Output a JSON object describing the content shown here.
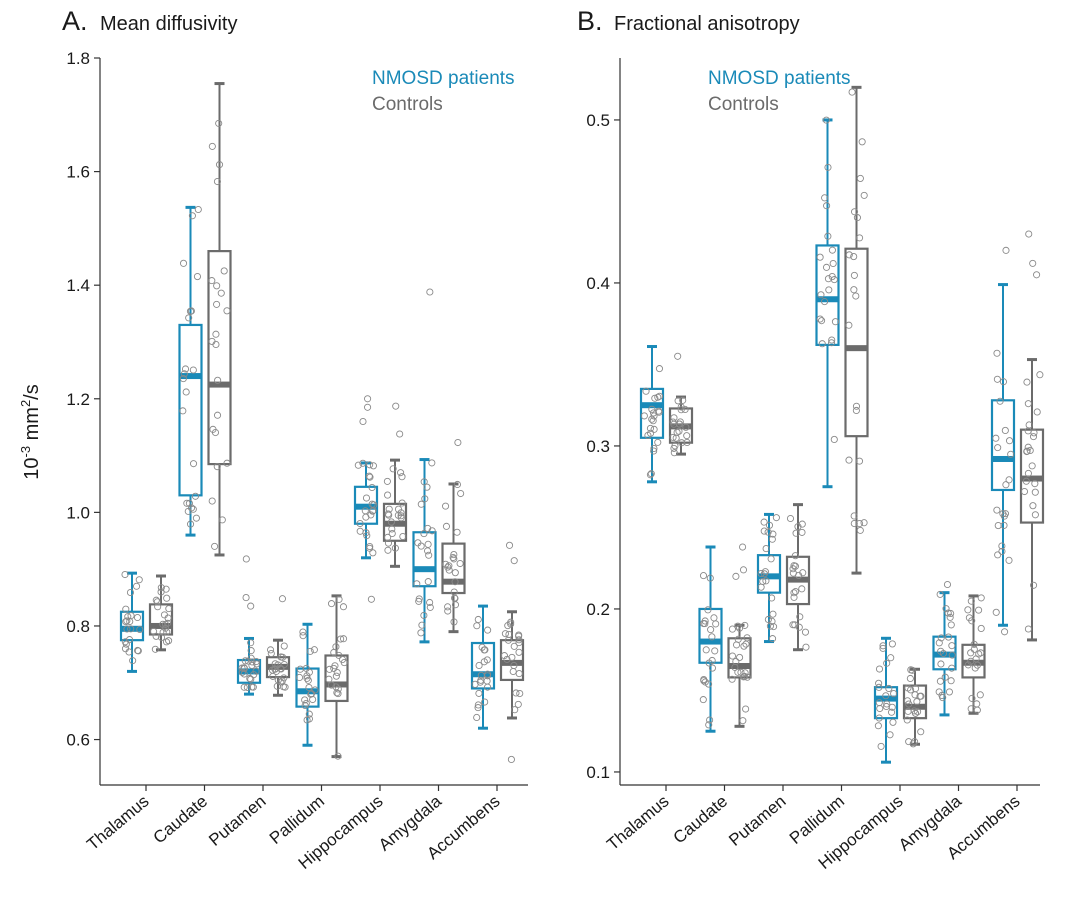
{
  "colors": {
    "patients": "#1a8ab8",
    "controls": "#6b6b6b",
    "axis": "#333333",
    "dots": "#8a8a8a"
  },
  "legend": {
    "patients": "NMOSD patients",
    "controls": "Controls"
  },
  "ylabel_base": "10",
  "ylabel_exp": "-3",
  "ylabel_unit": " mm",
  "ylabel_unit_exp": "2",
  "ylabel_tail": "/s",
  "chart_data": [
    {
      "type": "box",
      "letter": "A.",
      "title": "Mean diffusivity",
      "ylim": [
        0.52,
        1.8
      ],
      "yticks": [
        "0.6",
        "0.8",
        "1.0",
        "1.2",
        "1.4",
        "1.6",
        "1.8"
      ],
      "categories": [
        "Thalamus",
        "Caudate",
        "Putamen",
        "Pallidum",
        "Hippocampus",
        "Amygdala",
        "Accumbens"
      ],
      "series": [
        {
          "name": "NMOSD patients",
          "boxes": [
            {
              "whislo": 0.72,
              "q1": 0.775,
              "med": 0.795,
              "q3": 0.825,
              "whishi": 0.893,
              "fliers": []
            },
            {
              "whislo": 0.96,
              "q1": 1.03,
              "med": 1.24,
              "q3": 1.33,
              "whishi": 1.537,
              "fliers": []
            },
            {
              "whislo": 0.68,
              "q1": 0.7,
              "med": 0.72,
              "q3": 0.74,
              "whishi": 0.778,
              "fliers": [
                0.835,
                0.85,
                0.918
              ]
            },
            {
              "whislo": 0.59,
              "q1": 0.658,
              "med": 0.685,
              "q3": 0.725,
              "whishi": 0.803,
              "fliers": []
            },
            {
              "whislo": 0.92,
              "q1": 0.98,
              "med": 1.01,
              "q3": 1.045,
              "whishi": 1.087,
              "fliers": [
                0.847,
                1.16,
                1.185,
                1.2
              ]
            },
            {
              "whislo": 0.772,
              "q1": 0.87,
              "med": 0.9,
              "q3": 0.965,
              "whishi": 1.093,
              "fliers": [
                1.388
              ]
            },
            {
              "whislo": 0.62,
              "q1": 0.69,
              "med": 0.715,
              "q3": 0.77,
              "whishi": 0.835,
              "fliers": []
            }
          ]
        },
        {
          "name": "Controls",
          "boxes": [
            {
              "whislo": 0.758,
              "q1": 0.785,
              "med": 0.8,
              "q3": 0.838,
              "whishi": 0.888,
              "fliers": []
            },
            {
              "whislo": 0.925,
              "q1": 1.085,
              "med": 1.225,
              "q3": 1.46,
              "whishi": 1.755,
              "fliers": []
            },
            {
              "whislo": 0.678,
              "q1": 0.71,
              "med": 0.728,
              "q3": 0.745,
              "whishi": 0.775,
              "fliers": [
                0.848
              ]
            },
            {
              "whislo": 0.57,
              "q1": 0.668,
              "med": 0.697,
              "q3": 0.748,
              "whishi": 0.853,
              "fliers": []
            },
            {
              "whislo": 0.905,
              "q1": 0.95,
              "med": 0.98,
              "q3": 1.015,
              "whishi": 1.092,
              "fliers": [
                1.138,
                1.187
              ]
            },
            {
              "whislo": 0.79,
              "q1": 0.858,
              "med": 0.878,
              "q3": 0.945,
              "whishi": 1.05,
              "fliers": [
                1.123
              ]
            },
            {
              "whislo": 0.638,
              "q1": 0.705,
              "med": 0.735,
              "q3": 0.775,
              "whishi": 0.825,
              "fliers": [
                0.565,
                0.915,
                0.942
              ]
            }
          ]
        }
      ]
    },
    {
      "type": "box",
      "letter": "B.",
      "title": "Fractional anisotropy",
      "ylim": [
        0.092,
        0.538
      ],
      "yticks": [
        "0.1",
        "0.2",
        "0.3",
        "0.4",
        "0.5"
      ],
      "categories": [
        "Thalamus",
        "Caudate",
        "Putamen",
        "Pallidum",
        "Hippocampus",
        "Amygdala",
        "Accumbens"
      ],
      "series": [
        {
          "name": "NMOSD patients",
          "boxes": [
            {
              "whislo": 0.278,
              "q1": 0.305,
              "med": 0.325,
              "q3": 0.335,
              "whishi": 0.361,
              "fliers": []
            },
            {
              "whislo": 0.125,
              "q1": 0.167,
              "med": 0.18,
              "q3": 0.2,
              "whishi": 0.238,
              "fliers": []
            },
            {
              "whislo": 0.18,
              "q1": 0.21,
              "med": 0.22,
              "q3": 0.233,
              "whishi": 0.258,
              "fliers": []
            },
            {
              "whislo": 0.275,
              "q1": 0.362,
              "med": 0.39,
              "q3": 0.423,
              "whishi": 0.5,
              "fliers": []
            },
            {
              "whislo": 0.106,
              "q1": 0.133,
              "med": 0.145,
              "q3": 0.152,
              "whishi": 0.182,
              "fliers": []
            },
            {
              "whislo": 0.135,
              "q1": 0.163,
              "med": 0.172,
              "q3": 0.183,
              "whishi": 0.21,
              "fliers": [
                0.215
              ]
            },
            {
              "whislo": 0.19,
              "q1": 0.273,
              "med": 0.292,
              "q3": 0.328,
              "whishi": 0.399,
              "fliers": [
                0.186,
                0.42
              ]
            }
          ]
        },
        {
          "name": "Controls",
          "boxes": [
            {
              "whislo": 0.295,
              "q1": 0.302,
              "med": 0.312,
              "q3": 0.323,
              "whishi": 0.33,
              "fliers": [
                0.355
              ]
            },
            {
              "whislo": 0.128,
              "q1": 0.158,
              "med": 0.165,
              "q3": 0.182,
              "whishi": 0.19,
              "fliers": [
                0.22,
                0.224,
                0.238
              ]
            },
            {
              "whislo": 0.175,
              "q1": 0.203,
              "med": 0.218,
              "q3": 0.232,
              "whishi": 0.264,
              "fliers": []
            },
            {
              "whislo": 0.222,
              "q1": 0.306,
              "med": 0.36,
              "q3": 0.421,
              "whishi": 0.52,
              "fliers": []
            },
            {
              "whislo": 0.117,
              "q1": 0.133,
              "med": 0.14,
              "q3": 0.153,
              "whishi": 0.163,
              "fliers": []
            },
            {
              "whislo": 0.136,
              "q1": 0.158,
              "med": 0.167,
              "q3": 0.178,
              "whishi": 0.208,
              "fliers": []
            },
            {
              "whislo": 0.181,
              "q1": 0.253,
              "med": 0.28,
              "q3": 0.31,
              "whishi": 0.353,
              "fliers": [
                0.405,
                0.412,
                0.43
              ]
            }
          ]
        }
      ]
    }
  ]
}
